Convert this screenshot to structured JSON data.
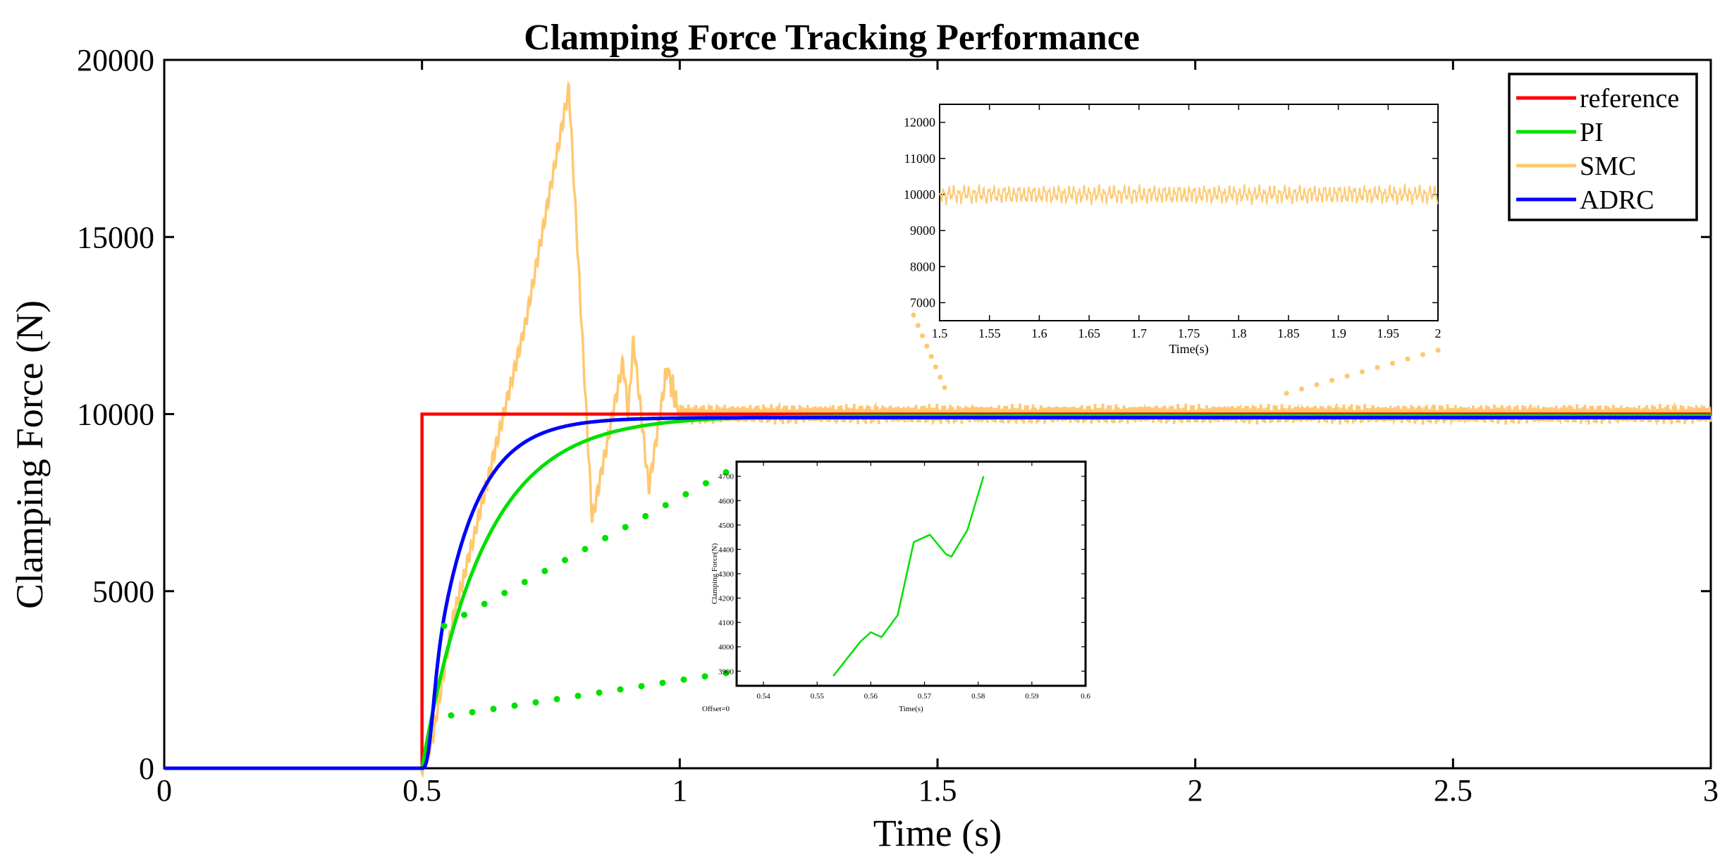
{
  "chart_data": {
    "type": "line",
    "title": "Clamping Force Tracking Performance",
    "xlabel": "Time (s)",
    "ylabel": "Clamping Force (N)",
    "xlim": [
      0,
      3
    ],
    "ylim": [
      0,
      20000
    ],
    "x_ticks": [
      0,
      0.5,
      1,
      1.5,
      2,
      2.5,
      3
    ],
    "x_tick_labels": [
      "0",
      "0.5",
      "1",
      "1.5",
      "2",
      "2.5",
      "3"
    ],
    "y_ticks": [
      0,
      5000,
      10000,
      15000,
      20000
    ],
    "y_tick_labels": [
      "0",
      "5000",
      "10000",
      "15000",
      "20000"
    ],
    "grid": false,
    "legend_position": "top-right",
    "series": [
      {
        "name": "reference",
        "color": "#ff0000",
        "points": [
          [
            0,
            0
          ],
          [
            0.5,
            0
          ],
          [
            0.5,
            10000
          ],
          [
            3,
            10000
          ]
        ]
      },
      {
        "name": "PI",
        "color": "#00e000",
        "model": "first-order rise from t=0.5 to 9950 N, time constant 0.12 s"
      },
      {
        "name": "SMC",
        "color": "#ffc870",
        "points": [
          [
            0,
            0
          ],
          [
            0.5,
            0
          ],
          [
            0.52,
            800
          ],
          [
            0.56,
            4200
          ],
          [
            0.6,
            6500
          ],
          [
            0.7,
            12500
          ],
          [
            0.785,
            19200
          ],
          [
            0.83,
            7000
          ],
          [
            0.89,
            11500
          ],
          [
            0.9,
            10000
          ],
          [
            0.91,
            12100
          ],
          [
            0.94,
            7900
          ],
          [
            0.975,
            11300
          ],
          [
            1.0,
            10000
          ],
          [
            3,
            10000
          ]
        ],
        "steady_state_ripple": 300
      },
      {
        "name": "ADRC",
        "color": "#0000ff",
        "model": "smooth rise from t=0.5 to 9900 N, time constant 0.075 s"
      }
    ],
    "insets": [
      {
        "name": "top-inset",
        "xlim": [
          1.5,
          2
        ],
        "ylim": [
          6500,
          12500
        ],
        "x_ticks": [
          1.5,
          1.55,
          1.6,
          1.65,
          1.7,
          1.75,
          1.8,
          1.85,
          1.9,
          1.95,
          2
        ],
        "x_tick_labels": [
          "1.5",
          "1.55",
          "1.6",
          "1.65",
          "1.7",
          "1.75",
          "1.8",
          "1.85",
          "1.9",
          "1.95",
          "2"
        ],
        "y_ticks": [
          7000,
          8000,
          9000,
          10000,
          11000,
          12000
        ],
        "y_tick_labels": [
          "7000",
          "8000",
          "9000",
          "10000",
          "11000",
          "12000"
        ],
        "xlabel": "Time(s)",
        "series": "SMC",
        "center": 10000,
        "ripple": 300
      },
      {
        "name": "bottom-inset",
        "xlim": [
          0.535,
          0.6
        ],
        "x_ticks": [
          0.54,
          0.55,
          0.56,
          0.57,
          0.58,
          0.59,
          0.6
        ],
        "x_tick_labels": [
          "0.54",
          "0.55",
          "0.56",
          "0.57",
          "0.58",
          "0.59",
          "0.6"
        ],
        "y_tick_labels": [
          "3900",
          "4000",
          "4100",
          "4200",
          "4300",
          "4400",
          "4500",
          "4600",
          "4700"
        ],
        "xlabel": "Time(s)",
        "ylabel": "Clamping Force(N)",
        "offset_label": "Offset=0",
        "series": "PI",
        "points": [
          [
            0.553,
            3880
          ],
          [
            0.558,
            4020
          ],
          [
            0.56,
            4060
          ],
          [
            0.562,
            4040
          ],
          [
            0.565,
            4130
          ],
          [
            0.568,
            4430
          ],
          [
            0.571,
            4460
          ],
          [
            0.574,
            4380
          ],
          [
            0.575,
            4370
          ],
          [
            0.578,
            4480
          ],
          [
            0.581,
            4700
          ]
        ]
      }
    ]
  }
}
